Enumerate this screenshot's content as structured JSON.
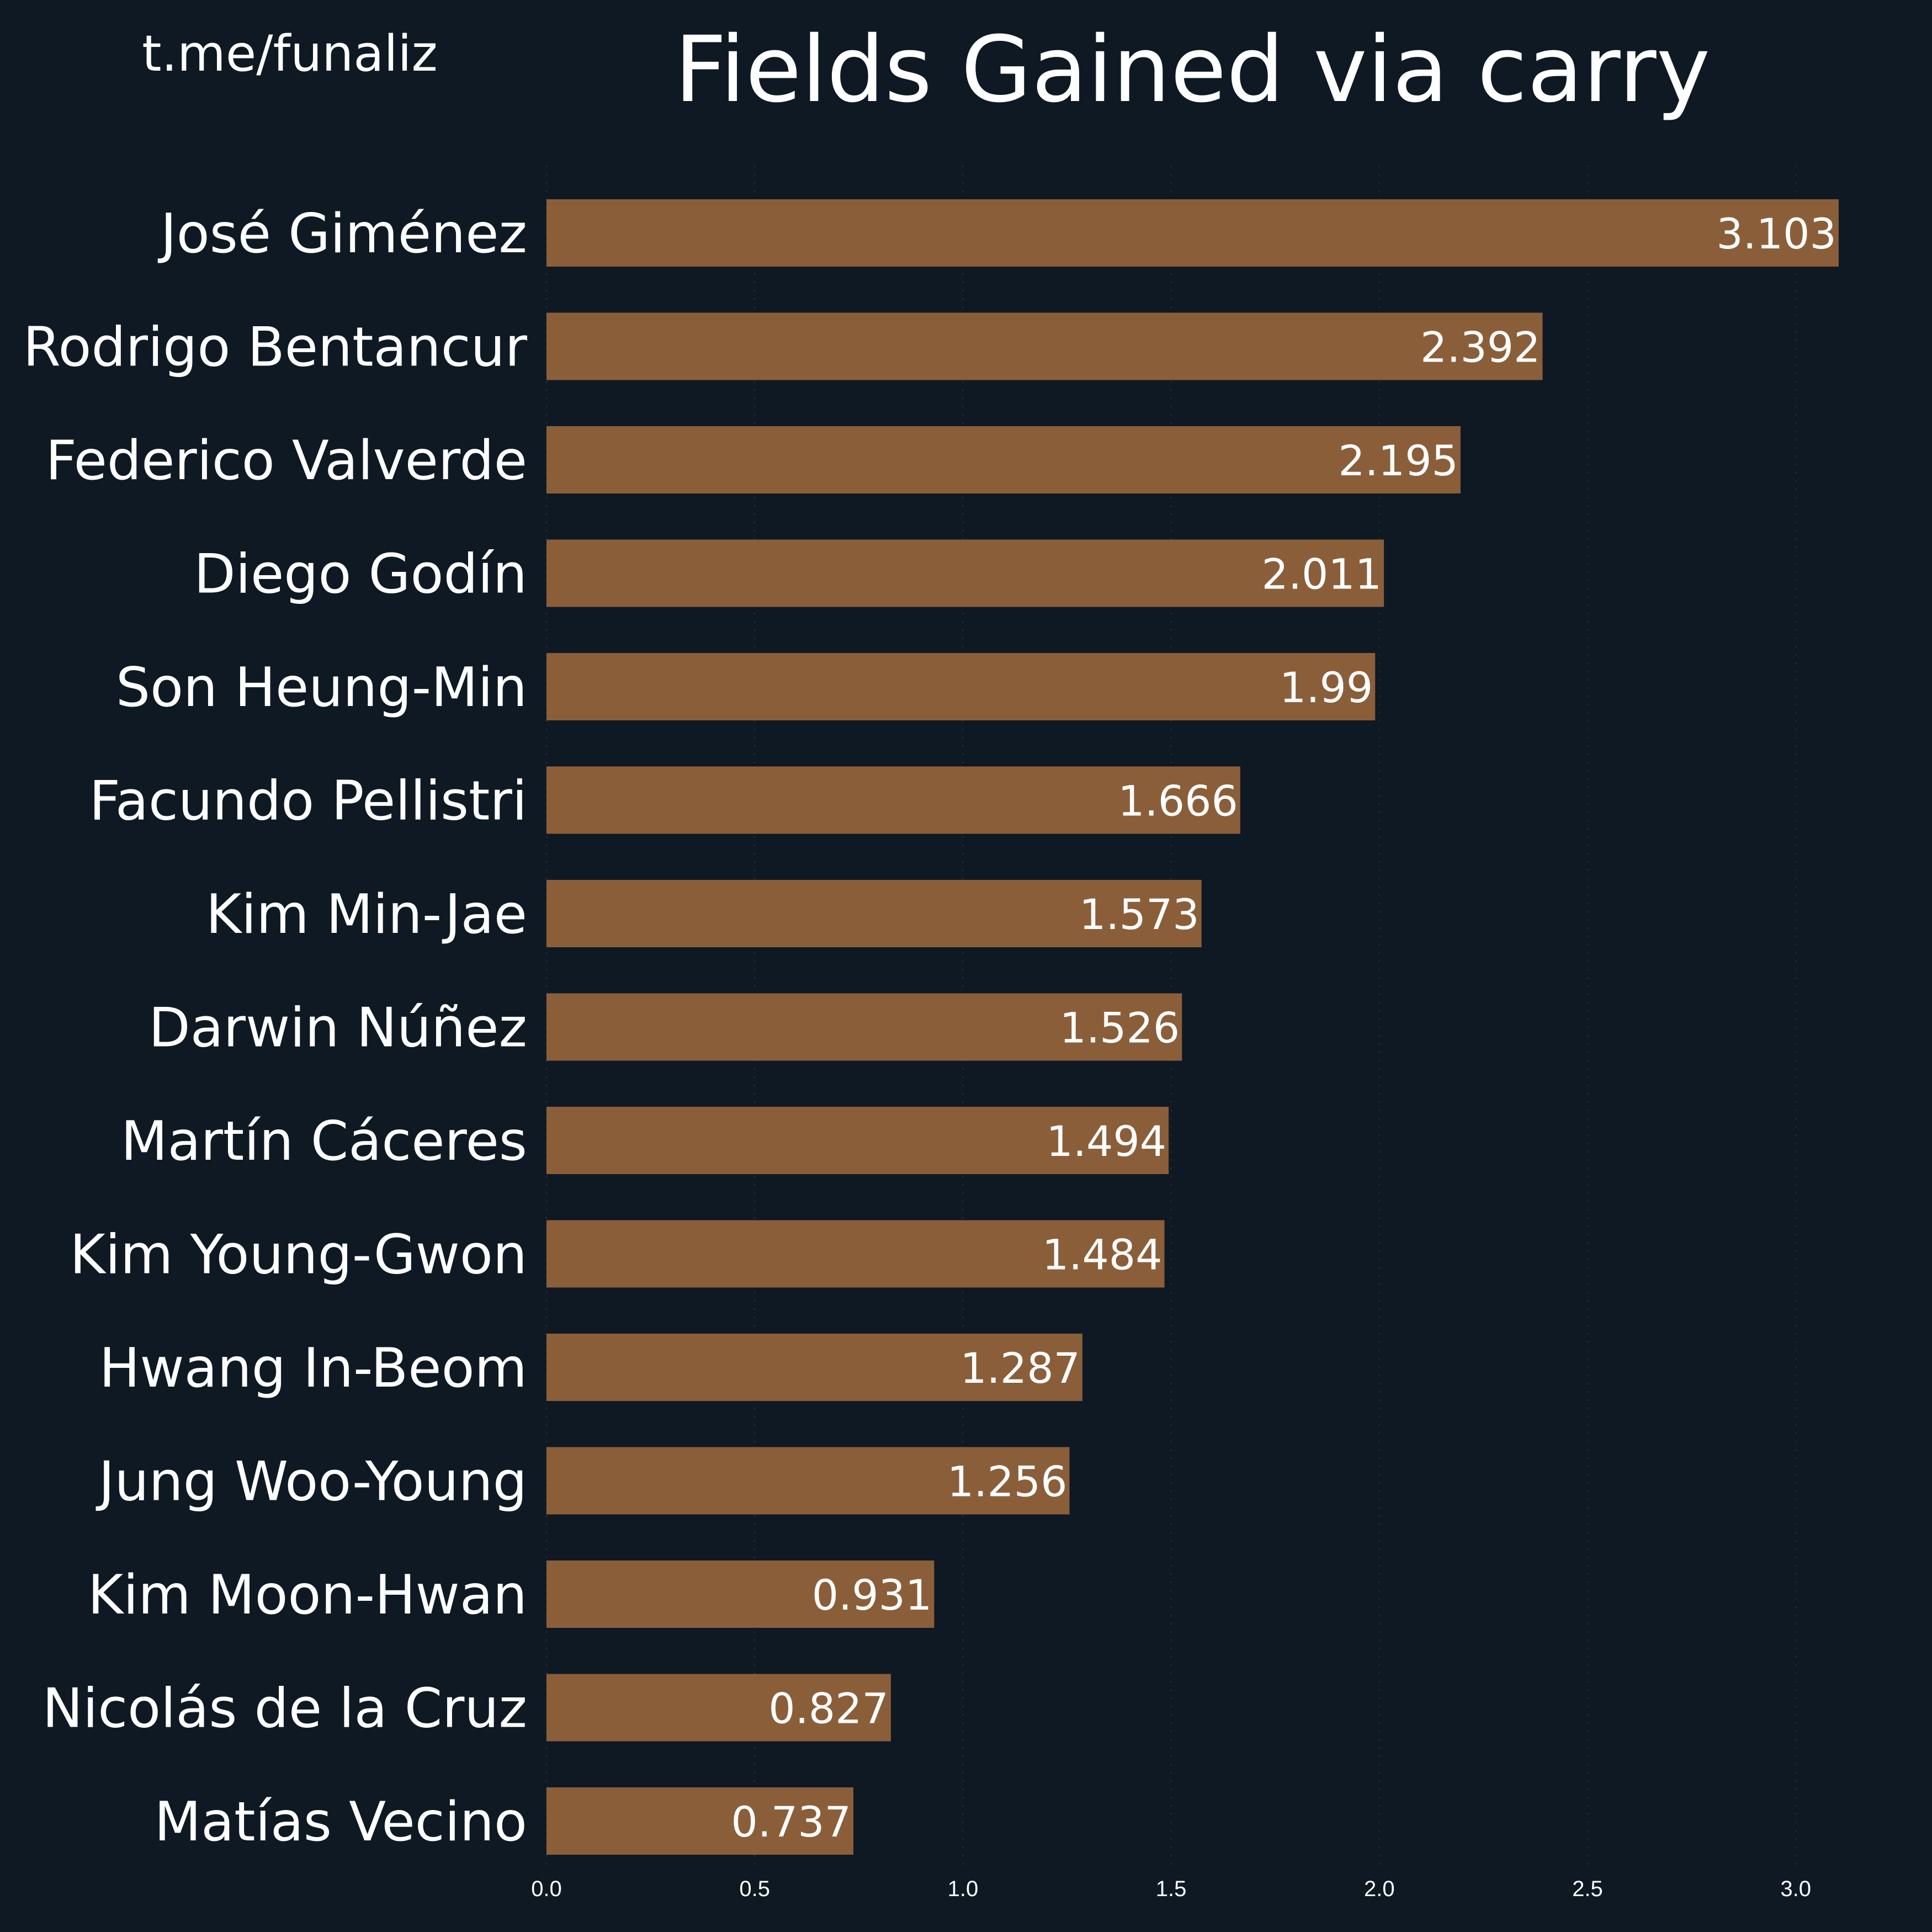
{
  "watermark": "t.me/funaliz",
  "chart_data": {
    "type": "bar",
    "orientation": "horizontal",
    "title": "Fields Gained via carry",
    "xlabel": "",
    "ylabel": "",
    "xlim": [
      0,
      3.1
    ],
    "xticks": [
      "0.0",
      "0.5",
      "1.0",
      "1.5",
      "2.0",
      "2.5",
      "3.0"
    ],
    "grid": "x, dotted, faint",
    "categories": [
      "José Giménez",
      "Rodrigo Bentancur",
      "Federico Valverde",
      "Diego Godín",
      "Son Heung-Min",
      "Facundo Pellistri",
      "Kim Min-Jae",
      "Darwin Núñez",
      "Martín Cáceres",
      "Kim Young-Gwon",
      "Hwang In-Beom",
      "Jung Woo-Young",
      "Kim Moon-Hwan",
      "Nicolás de la Cruz",
      "Matías Vecino"
    ],
    "values": [
      3.103,
      2.392,
      2.195,
      2.011,
      1.99,
      1.666,
      1.573,
      1.526,
      1.494,
      1.484,
      1.287,
      1.256,
      0.931,
      0.827,
      0.737
    ],
    "value_labels": [
      "3.103",
      "2.392",
      "2.195",
      "2.011",
      "1.99",
      "1.666",
      "1.573",
      "1.526",
      "1.494",
      "1.484",
      "1.287",
      "1.256",
      "0.931",
      "0.827",
      "0.737"
    ],
    "colors": {
      "background": "#0f1923",
      "bar": "#8b5e3a",
      "text": "#ffffff"
    }
  }
}
